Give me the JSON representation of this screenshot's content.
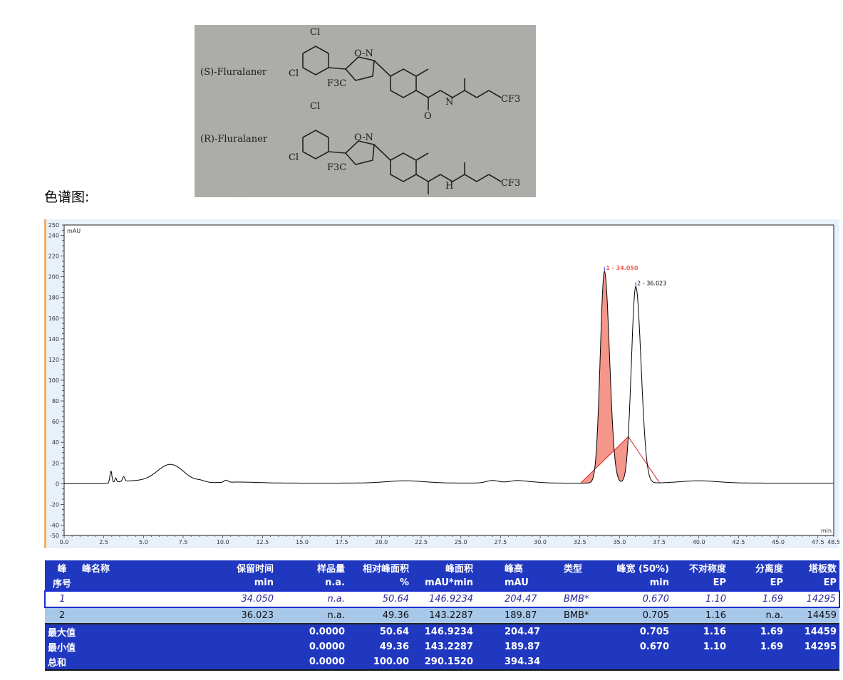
{
  "photo": {
    "s_label": "(S)-Fluralaner",
    "r_label": "(R)-Fluralaner",
    "atoms": {
      "cl": "Cl",
      "on": "O-N",
      "f3c": "F3C",
      "cf3": "CF3",
      "n": "N",
      "h": "H",
      "o": "O"
    }
  },
  "caption": "色谱图:",
  "chart_data": {
    "type": "line",
    "ylabel": "mAU",
    "xlabel": "min",
    "xlim": [
      0,
      48.5
    ],
    "ylim": [
      -50,
      250
    ],
    "x_ticks": [
      "0.0",
      "2.5",
      "5.0",
      "7.5",
      "10.0",
      "12.5",
      "15.0",
      "17.5",
      "20.0",
      "22.5",
      "25.0",
      "27.5",
      "30.0",
      "32.5",
      "35.0",
      "37.5",
      "40.0",
      "42.5",
      "45.0",
      "47.5",
      "48.5"
    ],
    "y_ticks": [
      "250",
      "240",
      "220",
      "200",
      "180",
      "160",
      "140",
      "120",
      "100",
      "80",
      "60",
      "40",
      "20",
      "0",
      "-20",
      "-40",
      "-50"
    ],
    "grid": false,
    "line_color": "#000000",
    "peak_fill_color": "#f4978a",
    "baseline_color": "#e02020",
    "peaks": [
      {
        "label": "1 - 34.050",
        "rt": 34.05,
        "height": 204.47,
        "width50": 0.67,
        "label_color": "#f06050",
        "filled": true
      },
      {
        "label": "2 - 36.023",
        "rt": 36.023,
        "height": 189.87,
        "width50": 0.705,
        "label_color": "#000000",
        "filled": false
      }
    ]
  },
  "table": {
    "header1": [
      "峰",
      "峰名称",
      "保留时间",
      "样品量",
      "相对峰面积",
      "峰面积",
      "峰高",
      "类型",
      "峰宽 (50%)",
      "不对称度",
      "分离度",
      "塔板数"
    ],
    "header2": [
      "序号",
      "",
      "min",
      "n.a.",
      "%",
      "mAU*min",
      "mAU",
      "",
      "min",
      "EP",
      "EP",
      "EP"
    ],
    "rows": [
      [
        "1",
        "",
        "34.050",
        "n.a.",
        "50.64",
        "146.9234",
        "204.47",
        "BMB*",
        "0.670",
        "1.10",
        "1.69",
        "14295"
      ],
      [
        "2",
        "",
        "36.023",
        "n.a.",
        "49.36",
        "143.2287",
        "189.87",
        "BMB*",
        "0.705",
        "1.16",
        "n.a.",
        "14459"
      ]
    ],
    "summary": [
      [
        "最大值",
        "",
        "",
        "0.0000",
        "50.64",
        "146.9234",
        "204.47",
        "",
        "0.705",
        "1.16",
        "1.69",
        "14459"
      ],
      [
        "最小值",
        "",
        "",
        "0.0000",
        "49.36",
        "143.2287",
        "189.87",
        "",
        "0.670",
        "1.10",
        "1.69",
        "14295"
      ],
      [
        "总和",
        "",
        "",
        "0.0000",
        "100.00",
        "290.1520",
        "394.34",
        "",
        "",
        "",
        "",
        ""
      ]
    ]
  }
}
